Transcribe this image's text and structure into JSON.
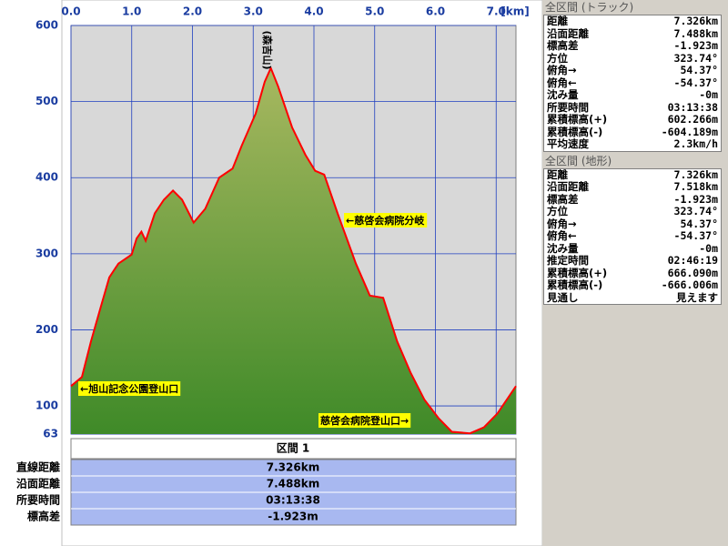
{
  "chart_data": {
    "type": "area",
    "x_unit": "[km]",
    "xlim": [
      0,
      7.326
    ],
    "xticks": [
      {
        "value": 0,
        "label": "0.0"
      },
      {
        "value": 1,
        "label": "1.0"
      },
      {
        "value": 2,
        "label": "2.0"
      },
      {
        "value": 3,
        "label": "3.0"
      },
      {
        "value": 4,
        "label": "4.0"
      },
      {
        "value": 5,
        "label": "5.0"
      },
      {
        "value": 6,
        "label": "6.0"
      },
      {
        "value": 7,
        "label": "7.0"
      }
    ],
    "ylim": [
      63,
      600
    ],
    "yticks": [
      600,
      500,
      400,
      300,
      200,
      100,
      63
    ],
    "grid": true,
    "x": [
      0,
      0.18,
      0.33,
      0.48,
      0.63,
      0.78,
      1.0,
      1.08,
      1.16,
      1.23,
      1.38,
      1.53,
      1.68,
      1.83,
      2.02,
      2.21,
      2.44,
      2.66,
      2.81,
      3.04,
      3.19,
      3.29,
      3.41,
      3.64,
      3.86,
      4.02,
      4.17,
      4.39,
      4.69,
      4.92,
      5.14,
      5.37,
      5.59,
      5.82,
      6.05,
      6.27,
      6.57,
      6.8,
      7.02,
      7.326
    ],
    "series": [
      {
        "color": "#ff0000",
        "values": [
          126,
          138,
          185,
          227,
          269,
          287,
          299,
          320,
          329,
          317,
          353,
          371,
          383,
          371,
          341,
          359,
          400,
          412,
          442,
          484,
          526,
          544,
          520,
          466,
          430,
          409,
          404,
          353,
          287,
          245,
          242,
          185,
          144,
          108,
          84,
          66,
          64,
          72,
          90,
          126
        ]
      }
    ],
    "annotations": [
      "(森吉山)",
      "←旭山記念公園登山口",
      "←慈啓会病院分岐",
      "慈啓会病院登山口→"
    ]
  },
  "section": {
    "title": "区間 1",
    "rows": [
      [
        "直線距離",
        "7.326km"
      ],
      [
        "沿面距離",
        "7.488km"
      ],
      [
        "所要時間",
        "03:13:38"
      ],
      [
        "標高差",
        "-1.923m"
      ]
    ]
  },
  "track": {
    "title": "全区間 (トラック)",
    "rows": [
      [
        "距離",
        "7.326km"
      ],
      [
        "沿面距離",
        "7.488km"
      ],
      [
        "標高差",
        "-1.923m"
      ],
      [
        "方位",
        "323.74°"
      ],
      [
        "俯角→",
        "54.37°"
      ],
      [
        "俯角←",
        "-54.37°"
      ],
      [
        "沈み量",
        "-0m"
      ],
      [
        "所要時間",
        "03:13:38"
      ],
      [
        "累積標高(+)",
        "602.266m"
      ],
      [
        "累積標高(-)",
        "-604.189m"
      ],
      [
        "平均速度",
        "2.3km/h"
      ]
    ]
  },
  "terrain": {
    "title": "全区間 (地形)",
    "rows": [
      [
        "距離",
        "7.326km"
      ],
      [
        "沿面距離",
        "7.518km"
      ],
      [
        "標高差",
        "-1.923m"
      ],
      [
        "方位",
        "323.74°"
      ],
      [
        "俯角→",
        "54.37°"
      ],
      [
        "俯角←",
        "-54.37°"
      ],
      [
        "沈み量",
        "-0m"
      ],
      [
        "推定時間",
        "02:46:19"
      ],
      [
        "累積標高(+)",
        "666.090m"
      ],
      [
        "累積標高(-)",
        "-666.006m"
      ],
      [
        "見通し",
        "見えます"
      ]
    ]
  }
}
